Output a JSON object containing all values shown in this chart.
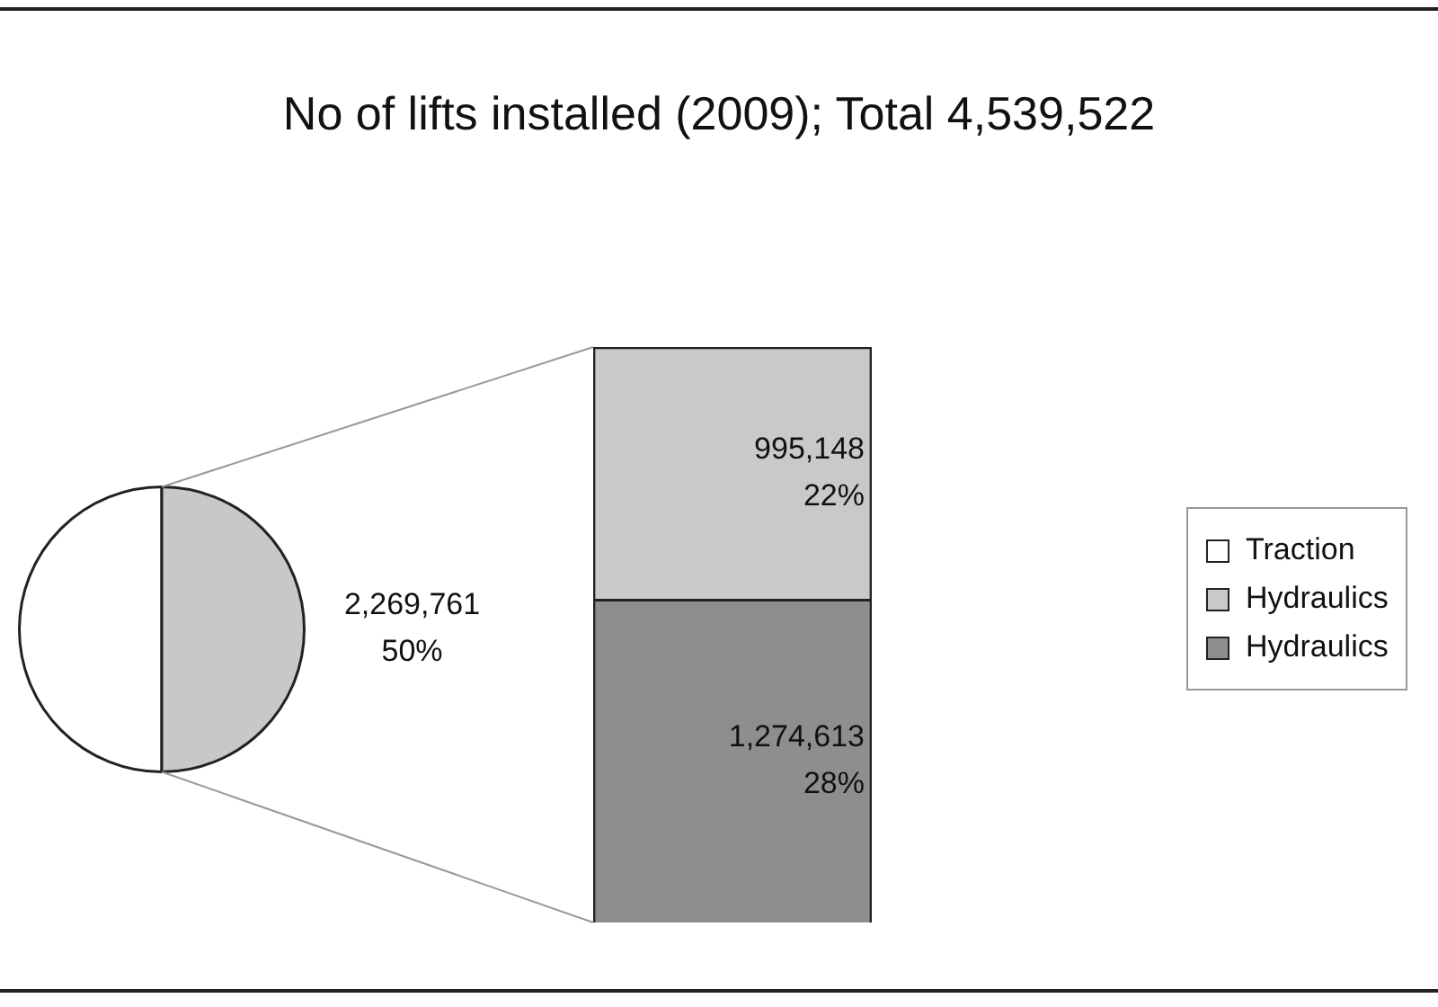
{
  "chart_data": [
    {
      "type": "pie",
      "categories": [
        "Traction",
        null
      ],
      "values": [
        2269761,
        2269761
      ],
      "colors": [
        "#ffffff",
        "#c8c8c8"
      ],
      "value_labels": [
        null,
        "2,269,761\n50%"
      ],
      "legend": "right"
    },
    {
      "type": "bar",
      "title": "No of lifts installed (2009); Total 4,539,522",
      "stacked": true,
      "categories": [
        null
      ],
      "series": [
        {
          "name": "Hydraulics",
          "color": "#8e8e8e",
          "values": [
            1274613
          ],
          "value_labels": [
            "1,274,613\n28%"
          ]
        },
        {
          "name": "Hydraulics",
          "color": "#c9c9c9",
          "values": [
            995148
          ],
          "value_labels": [
            "995,148\n22%"
          ]
        }
      ],
      "legend": "right"
    }
  ]
}
